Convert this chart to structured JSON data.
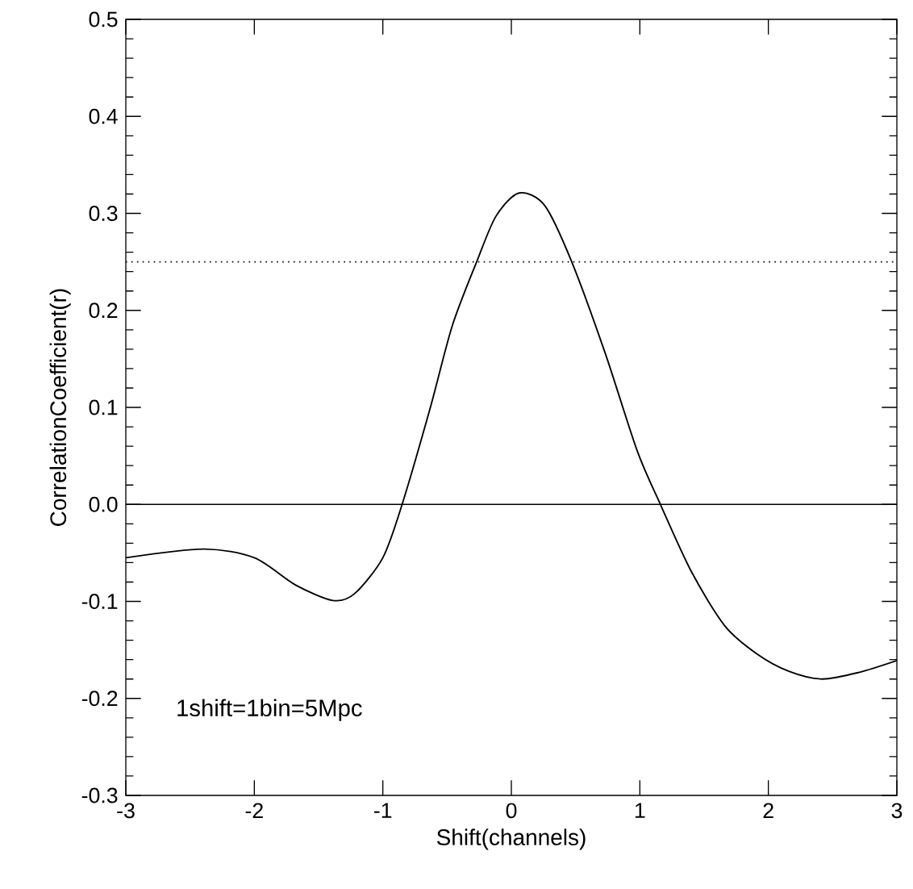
{
  "chart_data": {
    "type": "line",
    "xlabel": "Shift(channels)",
    "ylabel": "CorrelationCoefficient(r)",
    "x": [
      -3,
      -2.4,
      -2.0,
      -1.68,
      -1.39,
      -1.22,
      -1.0,
      -0.85,
      -0.63,
      -0.46,
      -0.27,
      -0.12,
      0.06,
      0.26,
      0.47,
      0.73,
      0.98,
      1.16,
      1.4,
      1.66,
      1.91,
      2.16,
      2.42,
      2.71,
      3.0
    ],
    "series": [
      {
        "color": "#000000",
        "values": [
          -0.055,
          -0.046,
          -0.055,
          -0.083,
          -0.099,
          -0.092,
          -0.055,
          0.0,
          0.1,
          0.184,
          0.25,
          0.297,
          0.321,
          0.308,
          0.25,
          0.156,
          0.055,
          0.0,
          -0.069,
          -0.125,
          -0.154,
          -0.172,
          -0.18,
          -0.173,
          -0.161
        ]
      }
    ],
    "xlim": [
      -3,
      3
    ],
    "ylim": [
      -0.3,
      0.5
    ],
    "xticks": [
      -3,
      -2,
      -1,
      0,
      1,
      2,
      3
    ],
    "yticks": [
      -0.3,
      -0.2,
      -0.1,
      {
        "value": 0,
        "label": "0.0"
      },
      0.1,
      0.2,
      0.3,
      0.4,
      0.5
    ],
    "ref_lines": [
      {
        "axis": "y",
        "value": 0,
        "line_style": "solid",
        "color": "#000000"
      },
      {
        "axis": "y",
        "value": 0.25,
        "line_style": "dotted",
        "color": "#000000"
      }
    ],
    "annotations": [
      "1shift=1bin=5Mpc"
    ],
    "grid": false,
    "marker": "none",
    "line_style": "solid"
  }
}
